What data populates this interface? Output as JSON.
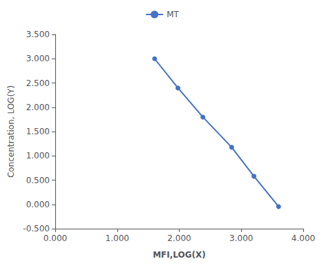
{
  "chart_data": {
    "type": "line",
    "x": [
      1.602,
      1.978,
      2.38,
      2.845,
      3.204,
      3.602
    ],
    "series": [
      {
        "name": "MT",
        "color": "#4472C4",
        "marker": "circle",
        "values": [
          3.0,
          2.398,
          1.799,
          1.176,
          0.58,
          -0.046
        ]
      }
    ],
    "xlabel": "MFI,LOG(X)",
    "ylabel": "Concentration, LOG(Y)",
    "xlim": [
      0.0,
      4.0
    ],
    "ylim": [
      -0.5,
      3.5
    ],
    "xticks": [
      {
        "value": 0,
        "label": "0.000"
      },
      {
        "value": 1,
        "label": "1.000"
      },
      {
        "value": 2,
        "label": "2.000"
      },
      {
        "value": 3,
        "label": "3.000"
      },
      {
        "value": 4,
        "label": "4.000"
      }
    ],
    "yticks": [
      {
        "value": -0.5,
        "label": "-0.500"
      },
      {
        "value": 0,
        "label": "0.000"
      },
      {
        "value": 0.5,
        "label": "0.500"
      },
      {
        "value": 1,
        "label": "1.000"
      },
      {
        "value": 1.5,
        "label": "1.500"
      },
      {
        "value": 2,
        "label": "2.000"
      },
      {
        "value": 2.5,
        "label": "2.500"
      },
      {
        "value": 3,
        "label": "3.000"
      },
      {
        "value": 3.5,
        "label": "3.500"
      }
    ],
    "grid": false,
    "legend": "top"
  }
}
